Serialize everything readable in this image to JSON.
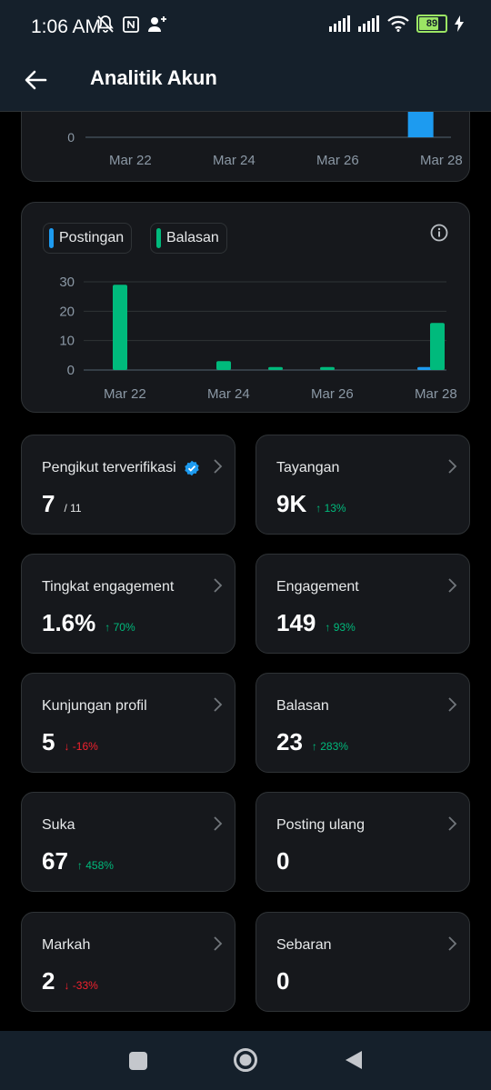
{
  "status_bar": {
    "time": "1:06 AM",
    "battery": "89",
    "battery_level": 0.89
  },
  "header": {
    "title": "Analitik Akun"
  },
  "chart_top": {
    "visible_y_tick": "0",
    "x_labels": [
      "Mar 22",
      "Mar 24",
      "Mar 26",
      "Mar 28"
    ]
  },
  "chart_main": {
    "legend": [
      {
        "label": "Postingan",
        "color": "#1d9bf0"
      },
      {
        "label": "Balasan",
        "color": "#00ba7c"
      }
    ],
    "y_ticks": [
      "30",
      "20",
      "10",
      "0"
    ],
    "x_labels": [
      "Mar 22",
      "Mar 24",
      "Mar 26",
      "Mar 28"
    ]
  },
  "chart_data": [
    {
      "type": "bar",
      "categories": [
        "Mar 22",
        "Mar 23",
        "Mar 24",
        "Mar 25",
        "Mar 26",
        "Mar 27",
        "Mar 28"
      ],
      "series": [
        {
          "color": "#1d9bf0",
          "values": [
            0,
            0,
            0,
            0,
            0,
            0,
            3
          ]
        }
      ],
      "ylim": [
        0,
        5
      ]
    },
    {
      "type": "bar",
      "categories": [
        "Mar 22",
        "Mar 23",
        "Mar 24",
        "Mar 25",
        "Mar 26",
        "Mar 27",
        "Mar 28"
      ],
      "series": [
        {
          "name": "Postingan",
          "color": "#1d9bf0",
          "values": [
            0,
            0,
            0,
            0,
            0,
            0,
            1
          ]
        },
        {
          "name": "Balasan",
          "color": "#00ba7c",
          "values": [
            29,
            0,
            3,
            1,
            1,
            0,
            16
          ]
        }
      ],
      "ylim": [
        0,
        30
      ],
      "grid": true,
      "legend_position": "top-left"
    }
  ],
  "metrics": [
    {
      "label": "Pengikut terverifikasi",
      "value": "7",
      "sub": "/ 11",
      "delta": "",
      "trend": "none",
      "verified": true
    },
    {
      "label": "Tayangan",
      "value": "9K",
      "sub": "",
      "delta": "↑ 13%",
      "trend": "up",
      "verified": false
    },
    {
      "label": "Tingkat engagement",
      "value": "1.6%",
      "sub": "",
      "delta": "↑ 70%",
      "trend": "up",
      "verified": false
    },
    {
      "label": "Engagement",
      "value": "149",
      "sub": "",
      "delta": "↑ 93%",
      "trend": "up",
      "verified": false
    },
    {
      "label": "Kunjungan profil",
      "value": "5",
      "sub": "",
      "delta": "↓ -16%",
      "trend": "down",
      "verified": false
    },
    {
      "label": "Balasan",
      "value": "23",
      "sub": "",
      "delta": "↑ 283%",
      "trend": "up",
      "verified": false
    },
    {
      "label": "Suka",
      "value": "67",
      "sub": "",
      "delta": "↑ 458%",
      "trend": "up",
      "verified": false
    },
    {
      "label": "Posting ulang",
      "value": "0",
      "sub": "",
      "delta": "",
      "trend": "none",
      "verified": false
    },
    {
      "label": "Markah",
      "value": "2",
      "sub": "",
      "delta": "↓ -33%",
      "trend": "down",
      "verified": false
    },
    {
      "label": "Sebaran",
      "value": "0",
      "sub": "",
      "delta": "",
      "trend": "none",
      "verified": false
    }
  ],
  "colors": {
    "accent": "#1d9bf0",
    "up": "#00ba7c",
    "down": "#f4212e",
    "card": "#16181c",
    "border": "#2f3336"
  },
  "icons": [
    "back-arrow-icon",
    "info-icon",
    "chevron-right-icon",
    "verified-badge-icon",
    "home-icon",
    "recents-icon",
    "nav-back-icon"
  ]
}
